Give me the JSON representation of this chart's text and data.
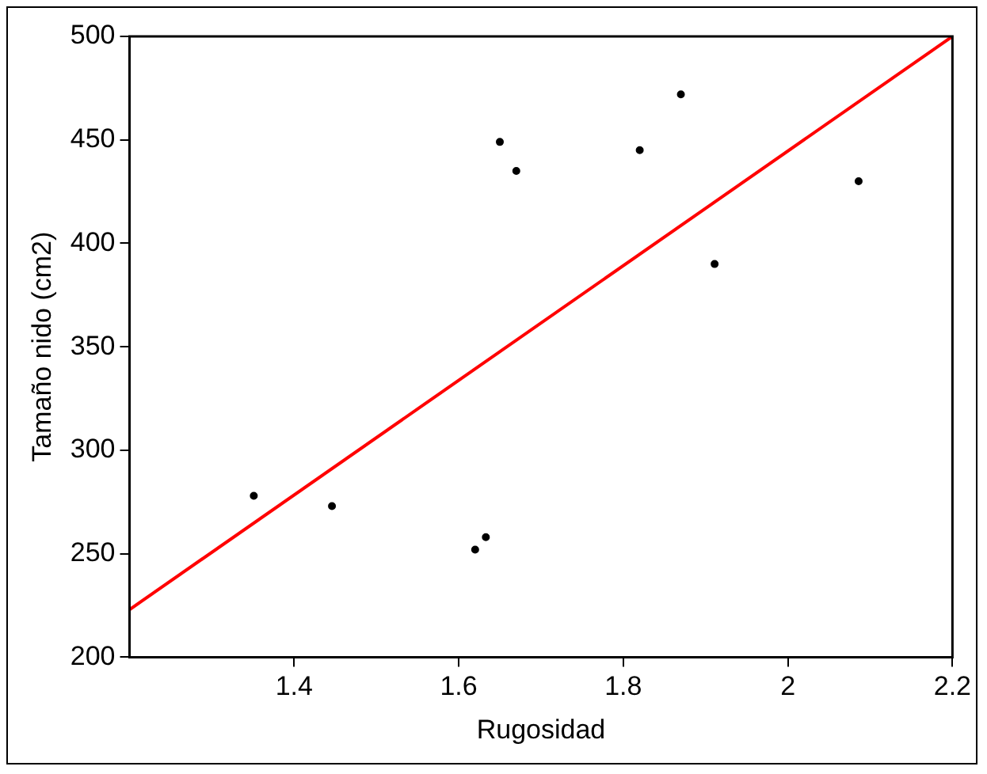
{
  "chart_data": {
    "type": "scatter",
    "xlabel": "Rugosidad",
    "ylabel": "Tamaño nido (cm2)",
    "xlim": [
      1.2,
      2.2
    ],
    "xticks": [
      1.4,
      1.6,
      1.8,
      2,
      2.2
    ],
    "ylim": [
      200,
      500
    ],
    "yticks": [
      200,
      250,
      300,
      350,
      400,
      450,
      500
    ],
    "grid": false,
    "legend": false,
    "marker": "circle",
    "series": [
      {
        "color": "#000000",
        "x": [
          1.351,
          1.446,
          1.62,
          1.633,
          1.65,
          1.67,
          1.82,
          1.87,
          1.911,
          2.086
        ],
        "values": [
          278,
          273,
          252,
          258,
          449,
          435,
          445,
          472,
          390,
          430
        ]
      },
      {
        "type": "line",
        "color": "#ff0000",
        "marker": "none",
        "line_style": "solid",
        "x": [
          1.2,
          2.2
        ],
        "values": [
          223,
          500
        ]
      }
    ]
  }
}
